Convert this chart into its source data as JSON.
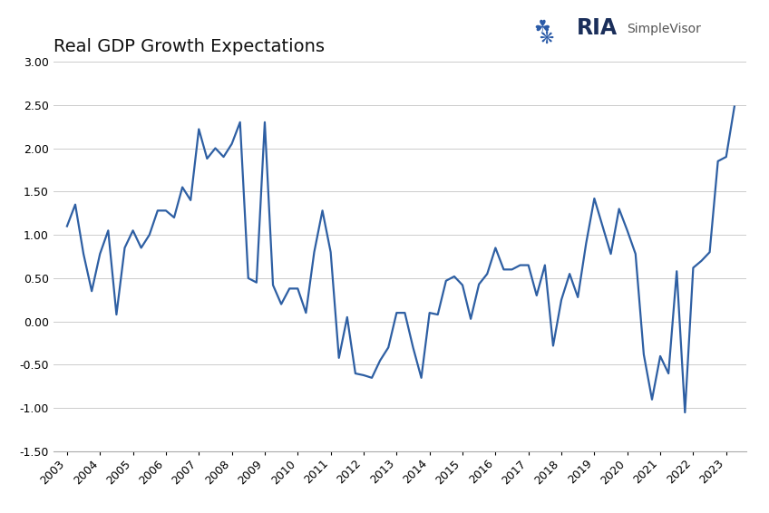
{
  "title": "Real GDP Growth Expectations",
  "background_color": "#ffffff",
  "line_color": "#2e5fa3",
  "line_width": 1.6,
  "ylim": [
    -1.5,
    3.0
  ],
  "yticks": [
    -1.5,
    -1.0,
    -0.5,
    0.0,
    0.5,
    1.0,
    1.5,
    2.0,
    2.5,
    3.0
  ],
  "x_labels": [
    "2003",
    "2004",
    "2005",
    "2006",
    "2007",
    "2008",
    "2009",
    "2010",
    "2011",
    "2012",
    "2013",
    "2014",
    "2015",
    "2016",
    "2017",
    "2018",
    "2019",
    "2020",
    "2021",
    "2022",
    "2023"
  ],
  "data": [
    [
      2003.0,
      1.1
    ],
    [
      2003.25,
      1.35
    ],
    [
      2003.5,
      0.78
    ],
    [
      2003.75,
      0.35
    ],
    [
      2004.0,
      0.78
    ],
    [
      2004.25,
      1.05
    ],
    [
      2004.5,
      0.08
    ],
    [
      2004.75,
      0.85
    ],
    [
      2005.0,
      1.05
    ],
    [
      2005.25,
      0.85
    ],
    [
      2005.5,
      1.0
    ],
    [
      2005.75,
      1.28
    ],
    [
      2006.0,
      1.28
    ],
    [
      2006.25,
      1.2
    ],
    [
      2006.5,
      1.55
    ],
    [
      2006.75,
      1.4
    ],
    [
      2007.0,
      2.22
    ],
    [
      2007.25,
      1.88
    ],
    [
      2007.5,
      2.0
    ],
    [
      2007.75,
      1.9
    ],
    [
      2008.0,
      2.05
    ],
    [
      2008.25,
      2.3
    ],
    [
      2008.5,
      0.5
    ],
    [
      2008.75,
      0.45
    ],
    [
      2009.0,
      2.3
    ],
    [
      2009.25,
      0.42
    ],
    [
      2009.5,
      0.2
    ],
    [
      2009.75,
      0.38
    ],
    [
      2010.0,
      0.38
    ],
    [
      2010.25,
      0.1
    ],
    [
      2010.5,
      0.8
    ],
    [
      2010.75,
      1.28
    ],
    [
      2011.0,
      0.8
    ],
    [
      2011.25,
      -0.42
    ],
    [
      2011.5,
      0.05
    ],
    [
      2011.75,
      -0.6
    ],
    [
      2012.0,
      -0.62
    ],
    [
      2012.25,
      -0.65
    ],
    [
      2012.5,
      -0.45
    ],
    [
      2012.75,
      -0.3
    ],
    [
      2013.0,
      0.1
    ],
    [
      2013.25,
      0.1
    ],
    [
      2013.5,
      -0.3
    ],
    [
      2013.75,
      -0.65
    ],
    [
      2014.0,
      0.1
    ],
    [
      2014.25,
      0.08
    ],
    [
      2014.5,
      0.47
    ],
    [
      2014.75,
      0.52
    ],
    [
      2015.0,
      0.42
    ],
    [
      2015.25,
      0.03
    ],
    [
      2015.5,
      0.43
    ],
    [
      2015.75,
      0.55
    ],
    [
      2016.0,
      0.85
    ],
    [
      2016.25,
      0.6
    ],
    [
      2016.5,
      0.6
    ],
    [
      2016.75,
      0.65
    ],
    [
      2017.0,
      0.65
    ],
    [
      2017.25,
      0.3
    ],
    [
      2017.5,
      0.65
    ],
    [
      2017.75,
      -0.28
    ],
    [
      2018.0,
      0.25
    ],
    [
      2018.25,
      0.55
    ],
    [
      2018.5,
      0.28
    ],
    [
      2018.75,
      0.9
    ],
    [
      2019.0,
      1.42
    ],
    [
      2019.25,
      1.1
    ],
    [
      2019.5,
      0.78
    ],
    [
      2019.75,
      1.3
    ],
    [
      2020.0,
      1.05
    ],
    [
      2020.25,
      0.78
    ],
    [
      2020.5,
      -0.38
    ],
    [
      2020.75,
      -0.9
    ],
    [
      2021.0,
      -0.4
    ],
    [
      2021.25,
      -0.6
    ],
    [
      2021.5,
      0.58
    ],
    [
      2021.75,
      -1.05
    ],
    [
      2022.0,
      0.62
    ],
    [
      2022.25,
      0.7
    ],
    [
      2022.5,
      0.8
    ],
    [
      2022.75,
      1.85
    ],
    [
      2023.0,
      1.9
    ],
    [
      2023.25,
      2.48
    ]
  ],
  "logo_ria_color": "#1a2e5a",
  "logo_simple_color": "#555555",
  "border_color": "#aaaaaa"
}
